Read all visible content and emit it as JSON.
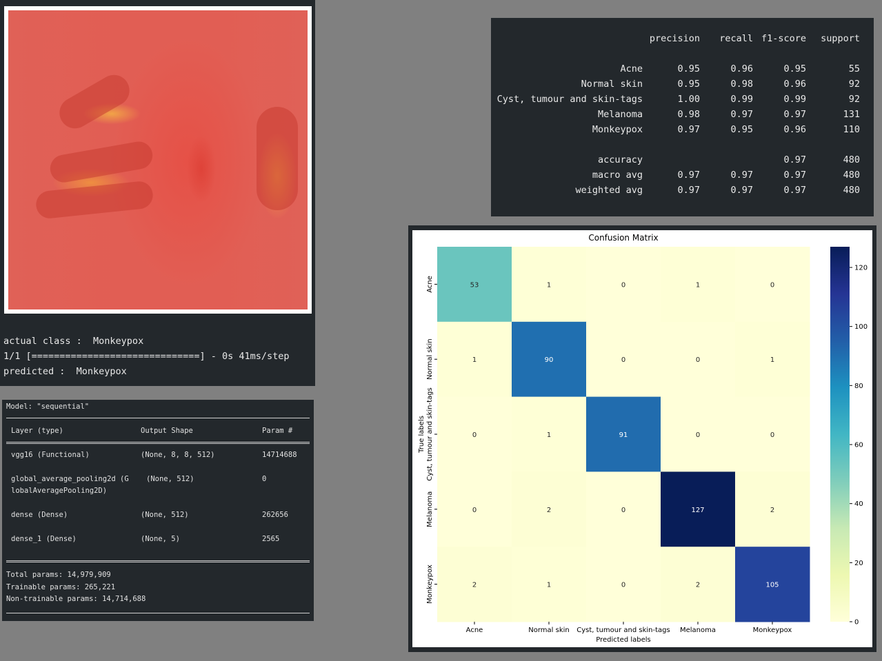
{
  "inference": {
    "actual_line": "actual class :  Monkeypox",
    "progress_line": "1/1 [==============================] - 0s 41ms/step",
    "predicted_line": "predicted :  Monkeypox"
  },
  "model_summary": {
    "title": "Model: \"sequential\"",
    "headers": [
      "Layer (type)",
      "Output Shape",
      "Param #"
    ],
    "rows": [
      {
        "layer": "vgg16 (Functional)",
        "shape": "(None, 8, 8, 512)",
        "params": "14714688"
      },
      {
        "layer": "global_average_pooling2d (G",
        "layer2": "lobalAveragePooling2D)",
        "shape": "(None, 512)",
        "params": "0"
      },
      {
        "layer": "dense (Dense)",
        "shape": "(None, 512)",
        "params": "262656"
      },
      {
        "layer": "dense_1 (Dense)",
        "shape": "(None, 5)",
        "params": "2565"
      }
    ],
    "total": "Total params: 14,979,909",
    "trainable": "Trainable params: 265,221",
    "non_trainable": "Non-trainable params: 14,714,688"
  },
  "report": {
    "headers": [
      "precision",
      "recall",
      "f1-score",
      "support"
    ],
    "rows": [
      {
        "label": "Acne",
        "p": "0.95",
        "r": "0.96",
        "f": "0.95",
        "s": "55"
      },
      {
        "label": "Normal skin",
        "p": "0.95",
        "r": "0.98",
        "f": "0.96",
        "s": "92"
      },
      {
        "label": "Cyst, tumour and skin-tags",
        "p": "1.00",
        "r": "0.99",
        "f": "0.99",
        "s": "92"
      },
      {
        "label": "Melanoma",
        "p": "0.98",
        "r": "0.97",
        "f": "0.97",
        "s": "131"
      },
      {
        "label": "Monkeypox",
        "p": "0.97",
        "r": "0.95",
        "f": "0.96",
        "s": "110"
      }
    ],
    "summary": [
      {
        "label": "accuracy",
        "p": "",
        "r": "",
        "f": "0.97",
        "s": "480"
      },
      {
        "label": "macro avg",
        "p": "0.97",
        "r": "0.97",
        "f": "0.97",
        "s": "480"
      },
      {
        "label": "weighted avg",
        "p": "0.97",
        "r": "0.97",
        "f": "0.97",
        "s": "480"
      }
    ]
  },
  "chart_data": {
    "type": "heatmap",
    "title": "Confusion Matrix",
    "xlabel": "Predicted labels",
    "ylabel": "True labels",
    "categories": [
      "Acne",
      "Normal skin",
      "Cyst, tumour and skin-tags",
      "Melanoma",
      "Monkeypox"
    ],
    "matrix": [
      [
        53,
        1,
        0,
        1,
        0
      ],
      [
        1,
        90,
        0,
        0,
        1
      ],
      [
        0,
        1,
        91,
        0,
        0
      ],
      [
        0,
        2,
        0,
        127,
        2
      ],
      [
        2,
        1,
        0,
        2,
        105
      ]
    ],
    "colorbar_ticks": [
      0,
      20,
      40,
      60,
      80,
      100,
      120
    ],
    "vmin": 0,
    "vmax": 127,
    "colormap": "YlGnBu"
  }
}
